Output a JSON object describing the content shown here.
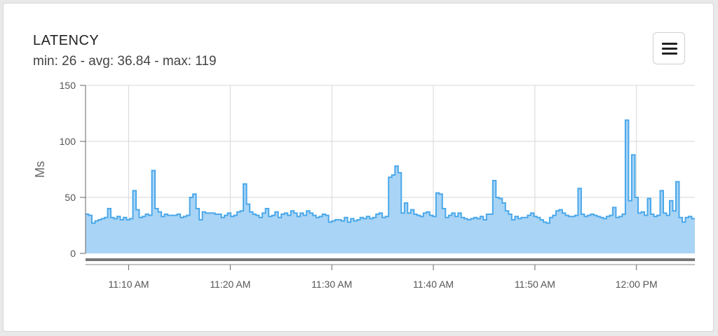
{
  "card": {
    "title": "LATENCY",
    "subtitle": "min: 26 - avg: 36.84 - max: 119",
    "menu_icon": "hamburger-menu-icon"
  },
  "colors": {
    "fill": "#a9d4f5",
    "line": "#4aa8ea",
    "grid": "#d7d7d7",
    "axis": "#666666"
  },
  "chart_data": {
    "type": "area",
    "step": true,
    "title": "",
    "xlabel": "",
    "ylabel": "Ms",
    "ylim": [
      0,
      150
    ],
    "yticks": [
      0,
      50,
      100,
      150
    ],
    "xticks": [
      "11:10 AM",
      "11:20 AM",
      "11:30 AM",
      "11:40 AM",
      "11:50 AM",
      "12:00 PM"
    ],
    "xrange_minutes_from_11_00": [
      5.75,
      65.75
    ],
    "grid": true,
    "series": [
      {
        "values": [
          35,
          34,
          27,
          29,
          30,
          31,
          32,
          40,
          32,
          31,
          33,
          30,
          32,
          30,
          31,
          56,
          39,
          32,
          33,
          35,
          34,
          74,
          40,
          37,
          33,
          35,
          34,
          34,
          34,
          35,
          32,
          33,
          34,
          50,
          53,
          40,
          30,
          37,
          36,
          36,
          36,
          35,
          35,
          32,
          34,
          36,
          33,
          34,
          37,
          38,
          62,
          44,
          37,
          35,
          34,
          32,
          36,
          40,
          33,
          34,
          37,
          32,
          35,
          36,
          34,
          38,
          36,
          33,
          36,
          34,
          38,
          36,
          34,
          32,
          33,
          35,
          34,
          28,
          29,
          30,
          30,
          29,
          32,
          28,
          31,
          29,
          30,
          32,
          31,
          33,
          31,
          32,
          35,
          36,
          32,
          33,
          68,
          70,
          78,
          72,
          36,
          45,
          36,
          39,
          35,
          34,
          33,
          36,
          37,
          34,
          33,
          54,
          53,
          40,
          32,
          34,
          36,
          33,
          36,
          32,
          31,
          30,
          31,
          32,
          31,
          33,
          30,
          35,
          35,
          65,
          50,
          49,
          45,
          38,
          35,
          30,
          33,
          31,
          32,
          32,
          34,
          36,
          33,
          32,
          30,
          28,
          27,
          32,
          34,
          38,
          39,
          36,
          34,
          33,
          33,
          34,
          58,
          35,
          33,
          34,
          35,
          34,
          33,
          32,
          31,
          33,
          34,
          41,
          32,
          33,
          35,
          119,
          47,
          88,
          50,
          36,
          37,
          34,
          49,
          35,
          33,
          34,
          56,
          36,
          34,
          47,
          38,
          64,
          32,
          28,
          32,
          33,
          31
        ]
      }
    ]
  }
}
